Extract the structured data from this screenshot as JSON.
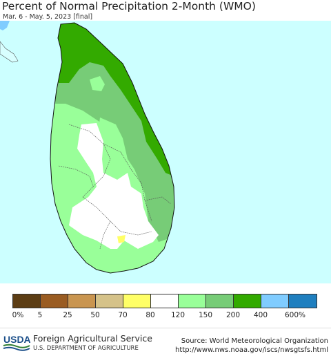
{
  "header": {
    "title": "Percent of Normal Precipitation 2-Month (WMO)",
    "subtitle": "Mar. 6 - May. 5, 2023 [final]"
  },
  "map": {
    "region": "Sri Lanka",
    "colors": {
      "ocean": "#ccffff",
      "land_no_data": "#ffffff",
      "dominant_category": "150-200 (#77cc77)"
    }
  },
  "legend": {
    "categories": [
      {
        "label": "0-5%",
        "color": "#5c3d14"
      },
      {
        "label": "5-25%",
        "color": "#9a5c22"
      },
      {
        "label": "25-50%",
        "color": "#c99550"
      },
      {
        "label": "50-70%",
        "color": "#d5c289"
      },
      {
        "label": "70-80%",
        "color": "#ffff66"
      },
      {
        "label": "80-120%",
        "color": "#ffffff"
      },
      {
        "label": "120-150%",
        "color": "#99ff99"
      },
      {
        "label": "150-200%",
        "color": "#77cc77"
      },
      {
        "label": "200-400%",
        "color": "#33aa00"
      },
      {
        "label": "400-600%",
        "color": "#80ccff"
      },
      {
        "label": ">600%",
        "color": "#1f7fbf"
      }
    ],
    "tick_labels": [
      "0%",
      "5",
      "25",
      "50",
      "70",
      "80",
      "120",
      "150",
      "200",
      "400",
      "600%"
    ]
  },
  "footer": {
    "logo_text": "USDA",
    "agency": "Foreign Agricultural Service",
    "department": "U.S. DEPARTMENT OF AGRICULTURE",
    "source": "Source: World Meteorological Organization",
    "url": "http://www.nws.noaa.gov/iscs/nwsgtsfs.html"
  }
}
